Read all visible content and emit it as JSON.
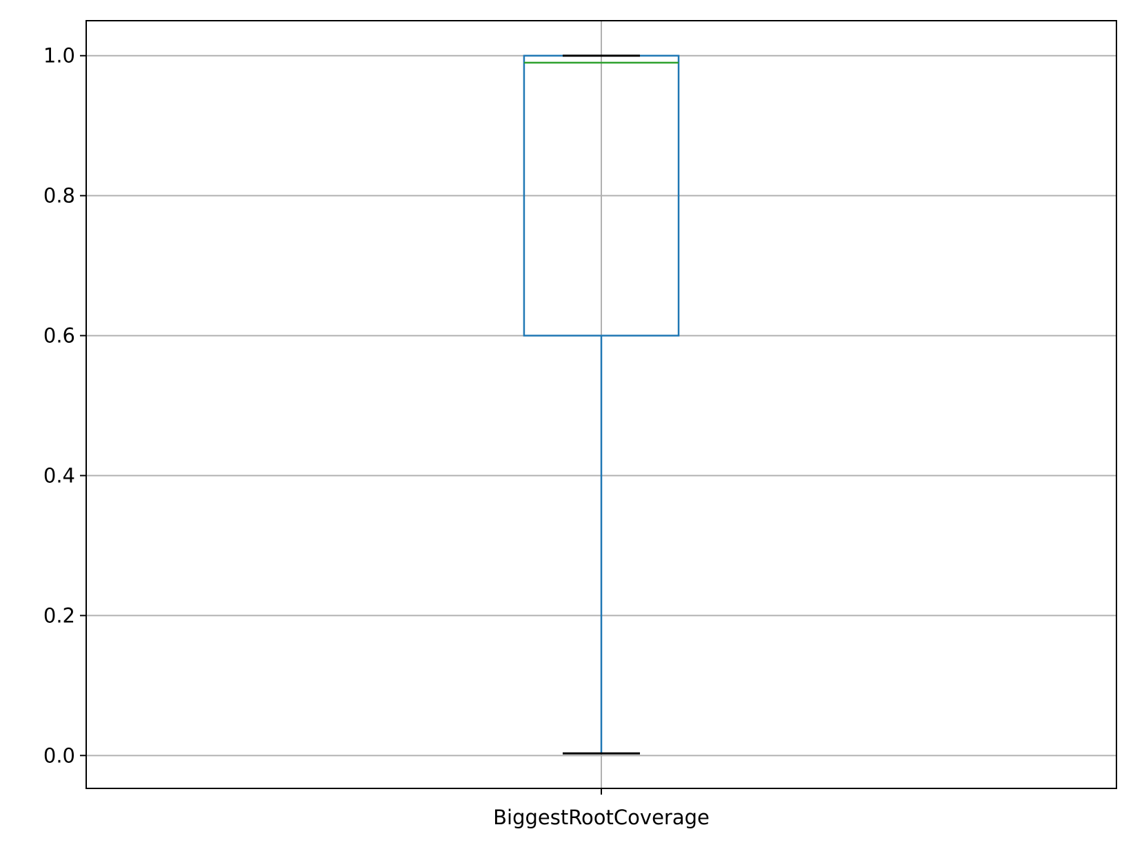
{
  "chart_data": {
    "type": "box",
    "categories": [
      "BiggestRootCoverage"
    ],
    "xlabel": "",
    "ylabel": "",
    "title": "",
    "ylim": [
      -0.047,
      1.05
    ],
    "yticks": [
      0.0,
      0.2,
      0.4,
      0.6,
      0.8,
      1.0
    ],
    "ytick_labels": [
      "0.0",
      "0.2",
      "0.4",
      "0.6",
      "0.8",
      "1.0"
    ],
    "grid": true,
    "boxes": [
      {
        "category": "BiggestRootCoverage",
        "whisker_low": 0.003,
        "q1": 0.6,
        "median": 0.99,
        "q3": 1.0,
        "whisker_high": 1.0
      }
    ],
    "colors": {
      "box": "#1f77b4",
      "median": "#2ca02c",
      "caps": "#000000",
      "grid": "#b0b0b0",
      "axes": "#000000"
    }
  }
}
